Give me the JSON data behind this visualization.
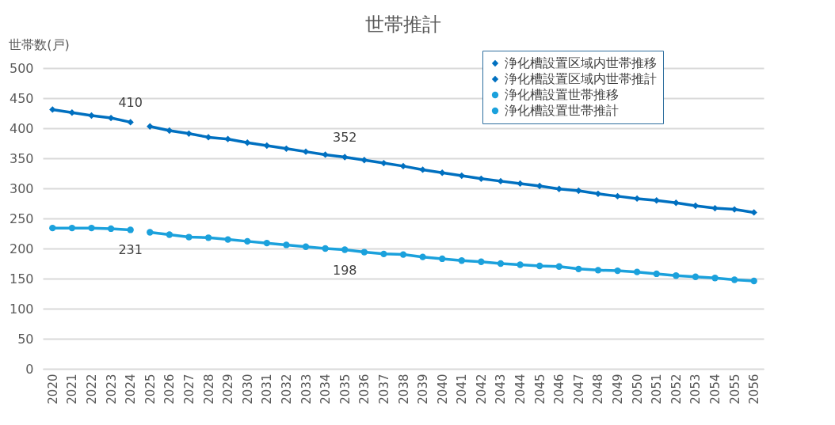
{
  "chart_data": {
    "type": "line",
    "title": "世帯推計",
    "ylabel": "世帯数(戸)",
    "categories": [
      "2020",
      "2021",
      "2022",
      "2023",
      "2024",
      "2025",
      "2026",
      "2027",
      "2028",
      "2029",
      "2030",
      "2031",
      "2032",
      "2033",
      "2034",
      "2035",
      "2036",
      "2037",
      "2038",
      "2039",
      "2040",
      "2041",
      "2042",
      "2043",
      "2044",
      "2045",
      "2046",
      "2047",
      "2048",
      "2049",
      "2050",
      "2051",
      "2052",
      "2053",
      "2054",
      "2055",
      "2056"
    ],
    "ylim": [
      0,
      500
    ],
    "yticks": [
      0,
      50,
      100,
      150,
      200,
      250,
      300,
      350,
      400,
      450,
      500
    ],
    "grid": "y",
    "legend": "top right",
    "series": [
      {
        "name": "浄化槽設置区域内世帯推移",
        "color": "#0070c0",
        "marker": "diamond",
        "values": [
          431,
          426,
          421,
          417,
          410,
          null,
          null,
          null,
          null,
          null,
          null,
          null,
          null,
          null,
          null,
          null,
          null,
          null,
          null,
          null,
          null,
          null,
          null,
          null,
          null,
          null,
          null,
          null,
          null,
          null,
          null,
          null,
          null,
          null,
          null,
          null,
          null
        ],
        "value_labels": [
          null,
          null,
          null,
          null,
          "410",
          null,
          null,
          null,
          null,
          null,
          null,
          null,
          null,
          null,
          null,
          null,
          null,
          null,
          null,
          null,
          null,
          null,
          null,
          null,
          null,
          null,
          null,
          null,
          null,
          null,
          null,
          null,
          null,
          null,
          null,
          null,
          null
        ]
      },
      {
        "name": "浄化槽設置区域内世帯推計",
        "color": "#0070c0",
        "marker": "diamond",
        "values": [
          null,
          null,
          null,
          null,
          null,
          403,
          396,
          391,
          385,
          382,
          376,
          371,
          366,
          361,
          356,
          352,
          347,
          342,
          337,
          331,
          326,
          321,
          316,
          312,
          308,
          304,
          299,
          296,
          291,
          287,
          283,
          280,
          276,
          271,
          267,
          265,
          260
        ],
        "value_labels": [
          null,
          null,
          null,
          null,
          null,
          null,
          null,
          null,
          null,
          null,
          null,
          null,
          null,
          null,
          null,
          "352",
          null,
          null,
          null,
          null,
          null,
          null,
          null,
          null,
          null,
          null,
          null,
          null,
          null,
          null,
          null,
          null,
          null,
          null,
          null,
          null,
          null
        ]
      },
      {
        "name": "浄化槽設置世帯推移",
        "color": "#1ba1dc",
        "marker": "circle",
        "values": [
          234,
          234,
          234,
          233,
          231,
          null,
          null,
          null,
          null,
          null,
          null,
          null,
          null,
          null,
          null,
          null,
          null,
          null,
          null,
          null,
          null,
          null,
          null,
          null,
          null,
          null,
          null,
          null,
          null,
          null,
          null,
          null,
          null,
          null,
          null,
          null,
          null
        ],
        "value_labels": [
          null,
          null,
          null,
          null,
          "231",
          null,
          null,
          null,
          null,
          null,
          null,
          null,
          null,
          null,
          null,
          null,
          null,
          null,
          null,
          null,
          null,
          null,
          null,
          null,
          null,
          null,
          null,
          null,
          null,
          null,
          null,
          null,
          null,
          null,
          null,
          null,
          null
        ]
      },
      {
        "name": "浄化槽設置世帯推計",
        "color": "#1ba1dc",
        "marker": "circle",
        "values": [
          null,
          null,
          null,
          null,
          null,
          227,
          223,
          219,
          218,
          215,
          212,
          209,
          206,
          203,
          200,
          198,
          194,
          191,
          190,
          186,
          183,
          180,
          178,
          175,
          173,
          171,
          170,
          166,
          164,
          163,
          161,
          158,
          155,
          153,
          151,
          148,
          146
        ],
        "value_labels": [
          null,
          null,
          null,
          null,
          null,
          null,
          null,
          null,
          null,
          null,
          null,
          null,
          null,
          null,
          null,
          "198",
          null,
          null,
          null,
          null,
          null,
          null,
          null,
          null,
          null,
          null,
          null,
          null,
          null,
          null,
          null,
          null,
          null,
          null,
          null,
          null,
          null
        ]
      }
    ]
  }
}
